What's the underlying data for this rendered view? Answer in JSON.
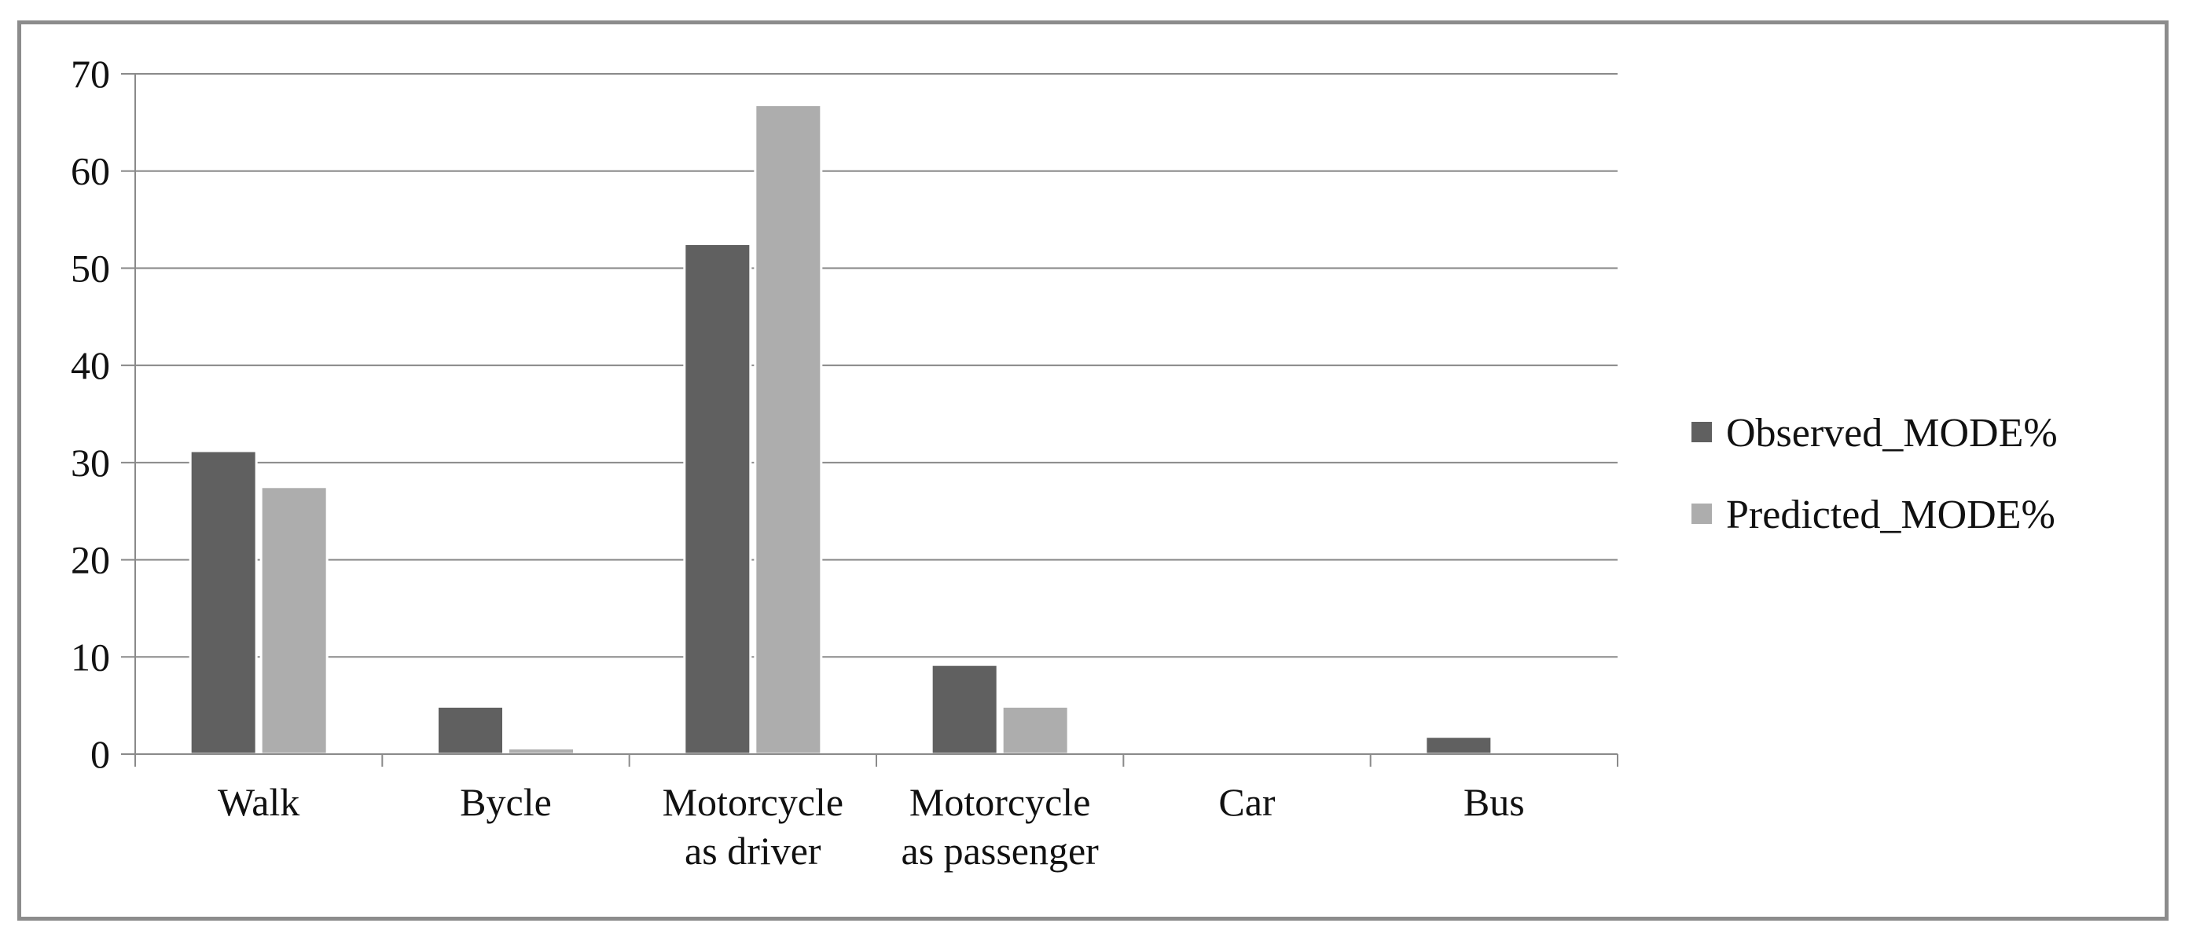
{
  "chart_data": {
    "type": "bar",
    "categories": [
      [
        "Walk"
      ],
      [
        "Bycle"
      ],
      [
        "Motorcycle",
        "as driver"
      ],
      [
        "Motorcycle",
        "as passenger"
      ],
      [
        "Car"
      ],
      [
        "Bus"
      ]
    ],
    "series": [
      {
        "name": "Observed_MODE%",
        "color": "#606060",
        "values": [
          31.2,
          4.9,
          52.5,
          9.2,
          0.1,
          1.8
        ]
      },
      {
        "name": "Predicted_MODE%",
        "color": "#adadad",
        "values": [
          27.5,
          0.6,
          66.8,
          4.9,
          0.1,
          0.2
        ]
      }
    ],
    "ylim": [
      0,
      70
    ],
    "yticks": [
      0,
      10,
      20,
      30,
      40,
      50,
      60,
      70
    ],
    "grid": true,
    "legend_position": "right"
  }
}
